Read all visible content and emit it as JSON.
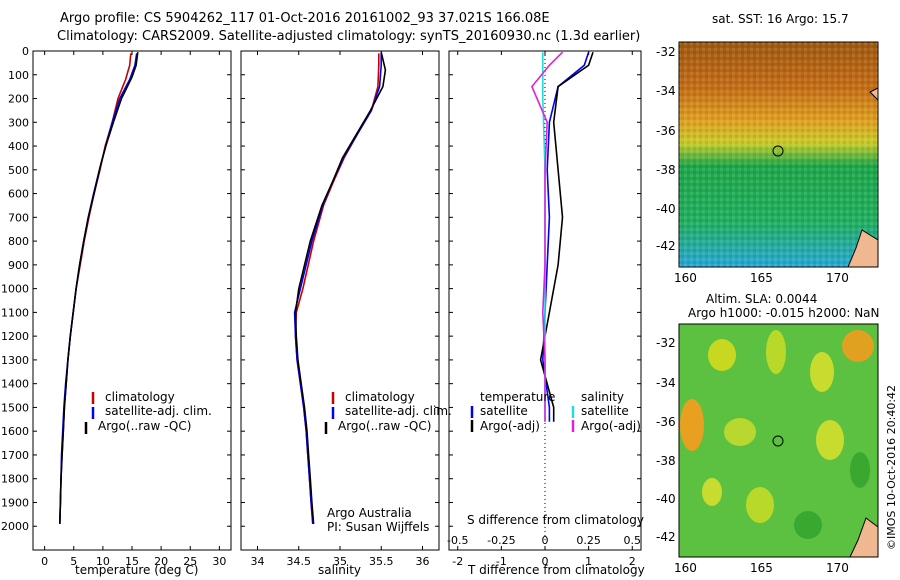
{
  "header": {
    "title_line1": "Argo profile: CS 5904262_117 01-Oct-2016 20161002_93 37.021S 166.08E",
    "title_line2": "Climatology: CARS2009. Satellite-adjusted climatology: synTS_20160930.nc (1.3d earlier)"
  },
  "colors": {
    "climatology": "#cc0000",
    "satellite": "#0000ee",
    "argo": "#000000",
    "salinity_satellite": "#22dddd",
    "salinity_argo": "#dd22dd"
  },
  "legend": {
    "climatology": "climatology",
    "satellite_adj": "satellite-adj. clim.",
    "argo_raw": "Argo(..raw -QC)",
    "temperature": "temperature",
    "salinity": "salinity",
    "satellite": "satellite",
    "argo_adj": "Argo(-adj)"
  },
  "annotations": {
    "argo_australia": "Argo Australia",
    "pi": "PI: Susan Wijffels",
    "imos": "©IMOS 10-Oct-2016 20:40:42"
  },
  "maps": {
    "sst_title": "sat. SST: 16 Argo: 15.7",
    "sla_title_line1": "Altim. SLA: 0.0044",
    "sla_title_line2": "Argo h1000: -0.015 h2000: NaN",
    "lat_ticks": [
      "-32",
      "-34",
      "-36",
      "-38",
      "-40",
      "-42"
    ],
    "lon_ticks": [
      "160",
      "165",
      "170"
    ]
  },
  "chart_data": [
    {
      "type": "line",
      "name": "temperature-profile",
      "xlabel": "temperature (deg C)",
      "ylabel": "",
      "xlim": [
        -2,
        32
      ],
      "ylim": [
        2100,
        0
      ],
      "xticks": [
        0,
        5,
        10,
        15,
        20,
        25,
        30
      ],
      "yticks": [
        0,
        100,
        200,
        300,
        400,
        500,
        600,
        700,
        800,
        900,
        1000,
        1100,
        1200,
        1300,
        1400,
        1500,
        1600,
        1700,
        1800,
        1900,
        2000
      ],
      "series": [
        {
          "name": "climatology",
          "color": "#cc0000",
          "points": [
            [
              14.8,
              10
            ],
            [
              14.6,
              60
            ],
            [
              13.9,
              120
            ],
            [
              12.6,
              200
            ],
            [
              11.6,
              300
            ],
            [
              10.4,
              400
            ],
            [
              9.5,
              500
            ],
            [
              8.5,
              600
            ],
            [
              7.6,
              700
            ],
            [
              6.8,
              800
            ],
            [
              6.1,
              900
            ],
            [
              5.4,
              1000
            ],
            [
              4.9,
              1100
            ],
            [
              4.4,
              1200
            ],
            [
              4.0,
              1300
            ],
            [
              3.7,
              1400
            ],
            [
              3.4,
              1500
            ],
            [
              3.2,
              1600
            ],
            [
              3.0,
              1700
            ],
            [
              2.8,
              1800
            ],
            [
              2.7,
              1900
            ],
            [
              2.6,
              1990
            ]
          ]
        },
        {
          "name": "satellite-adj. clim.",
          "color": "#0000ee",
          "points": [
            [
              15.8,
              10
            ],
            [
              15.5,
              60
            ],
            [
              14.6,
              120
            ],
            [
              12.9,
              200
            ],
            [
              11.6,
              300
            ],
            [
              10.5,
              400
            ],
            [
              9.4,
              500
            ],
            [
              8.4,
              600
            ],
            [
              7.5,
              700
            ],
            [
              6.7,
              800
            ],
            [
              6.0,
              900
            ],
            [
              5.4,
              1000
            ],
            [
              4.9,
              1100
            ],
            [
              4.4,
              1200
            ],
            [
              4.0,
              1300
            ],
            [
              3.6,
              1400
            ],
            [
              3.3,
              1500
            ],
            [
              3.1,
              1600
            ],
            [
              2.9,
              1700
            ],
            [
              2.8,
              1800
            ],
            [
              2.7,
              1900
            ],
            [
              2.6,
              1990
            ]
          ]
        },
        {
          "name": "Argo(..raw -QC)",
          "color": "#000000",
          "points": [
            [
              16.0,
              5
            ],
            [
              15.7,
              60
            ],
            [
              15.0,
              110
            ],
            [
              13.2,
              200
            ],
            [
              11.8,
              300
            ],
            [
              10.5,
              400
            ],
            [
              9.6,
              480
            ],
            [
              8.5,
              600
            ],
            [
              7.5,
              700
            ],
            [
              6.7,
              800
            ],
            [
              6.0,
              900
            ],
            [
              5.4,
              1000
            ],
            [
              4.9,
              1100
            ],
            [
              4.4,
              1200
            ],
            [
              4.0,
              1300
            ],
            [
              3.7,
              1400
            ],
            [
              3.4,
              1500
            ],
            [
              3.2,
              1600
            ],
            [
              3.0,
              1700
            ],
            [
              2.8,
              1800
            ],
            [
              2.7,
              1900
            ],
            [
              2.6,
              1990
            ]
          ]
        }
      ]
    },
    {
      "type": "line",
      "name": "salinity-profile",
      "xlabel": "salinity",
      "ylabel": "",
      "xlim": [
        33.8,
        36.2
      ],
      "ylim": [
        2100,
        0
      ],
      "xticks": [
        34,
        34.5,
        35,
        35.5,
        36
      ],
      "series": [
        {
          "name": "climatology",
          "color": "#cc0000",
          "points": [
            [
              35.47,
              10
            ],
            [
              35.47,
              60
            ],
            [
              35.46,
              150
            ],
            [
              35.38,
              250
            ],
            [
              35.21,
              350
            ],
            [
              35.05,
              450
            ],
            [
              34.92,
              550
            ],
            [
              34.8,
              650
            ],
            [
              34.68,
              800
            ],
            [
              34.55,
              1000
            ],
            [
              34.47,
              1100
            ],
            [
              34.46,
              1200
            ],
            [
              34.48,
              1300
            ],
            [
              34.52,
              1400
            ],
            [
              34.56,
              1500
            ],
            [
              34.59,
              1600
            ],
            [
              34.61,
              1700
            ],
            [
              34.63,
              1800
            ],
            [
              34.65,
              1900
            ],
            [
              34.67,
              1990
            ]
          ]
        },
        {
          "name": "satellite-adj. clim.",
          "color": "#0000ee",
          "points": [
            [
              35.5,
              10
            ],
            [
              35.5,
              60
            ],
            [
              35.48,
              150
            ],
            [
              35.38,
              250
            ],
            [
              35.21,
              350
            ],
            [
              35.04,
              450
            ],
            [
              34.91,
              550
            ],
            [
              34.79,
              650
            ],
            [
              34.66,
              800
            ],
            [
              34.52,
              1000
            ],
            [
              34.45,
              1100
            ],
            [
              34.46,
              1200
            ],
            [
              34.48,
              1300
            ],
            [
              34.52,
              1400
            ],
            [
              34.56,
              1500
            ],
            [
              34.59,
              1600
            ],
            [
              34.61,
              1700
            ],
            [
              34.63,
              1800
            ],
            [
              34.65,
              1900
            ],
            [
              34.67,
              1990
            ]
          ]
        },
        {
          "name": "Argo(..raw -QC)",
          "color": "#000000",
          "points": [
            [
              35.5,
              5
            ],
            [
              35.55,
              80
            ],
            [
              35.52,
              150
            ],
            [
              35.37,
              250
            ],
            [
              35.2,
              350
            ],
            [
              35.03,
              450
            ],
            [
              34.91,
              550
            ],
            [
              34.78,
              650
            ],
            [
              34.64,
              800
            ],
            [
              34.5,
              1000
            ],
            [
              34.46,
              1100
            ],
            [
              34.47,
              1200
            ],
            [
              34.49,
              1300
            ],
            [
              34.53,
              1400
            ],
            [
              34.57,
              1500
            ],
            [
              34.6,
              1600
            ],
            [
              34.62,
              1700
            ],
            [
              34.64,
              1800
            ],
            [
              34.66,
              1900
            ],
            [
              34.68,
              1990
            ]
          ]
        }
      ]
    },
    {
      "type": "line",
      "name": "difference-from-climatology",
      "xlabel": "T difference from climatology",
      "xlabel_top": "S difference from climatology",
      "xlim": [
        -2.2,
        2.2
      ],
      "ylim": [
        2100,
        0
      ],
      "xticks": [
        -2,
        -1,
        0,
        1,
        2
      ],
      "xticks_salinity": [
        -0.5,
        -0.25,
        0,
        0.25,
        0.5
      ],
      "series": [
        {
          "name": "temperature satellite",
          "color": "#0000ee",
          "points": [
            [
              1.0,
              5
            ],
            [
              0.9,
              60
            ],
            [
              0.3,
              150
            ],
            [
              0.1,
              300
            ],
            [
              0.05,
              500
            ],
            [
              0.1,
              700
            ],
            [
              0.05,
              900
            ],
            [
              0.0,
              1100
            ],
            [
              -0.05,
              1300
            ],
            [
              0.1,
              1500
            ],
            [
              0.1,
              1560
            ]
          ]
        },
        {
          "name": "temperature Argo(-adj)",
          "color": "#000000",
          "points": [
            [
              1.1,
              5
            ],
            [
              1.0,
              60
            ],
            [
              0.3,
              150
            ],
            [
              0.2,
              300
            ],
            [
              0.3,
              500
            ],
            [
              0.4,
              700
            ],
            [
              0.3,
              900
            ],
            [
              0.1,
              1100
            ],
            [
              -0.1,
              1300
            ],
            [
              0.2,
              1500
            ],
            [
              0.2,
              1560
            ]
          ]
        },
        {
          "name": "salinity satellite",
          "color": "#22dddd",
          "points": [
            [
              -0.05,
              5
            ],
            [
              -0.05,
              200
            ],
            [
              0.0,
              500
            ],
            [
              0.0,
              900
            ],
            [
              0.0,
              1300
            ],
            [
              0.0,
              1560
            ]
          ]
        },
        {
          "name": "salinity Argo(-adj)",
          "color": "#dd22dd",
          "points": [
            [
              0.4,
              5
            ],
            [
              0.1,
              60
            ],
            [
              -0.3,
              150
            ],
            [
              0.05,
              300
            ],
            [
              0.0,
              500
            ],
            [
              0.0,
              900
            ],
            [
              -0.05,
              1100
            ],
            [
              0.0,
              1300
            ],
            [
              0.0,
              1560
            ]
          ]
        }
      ]
    }
  ]
}
